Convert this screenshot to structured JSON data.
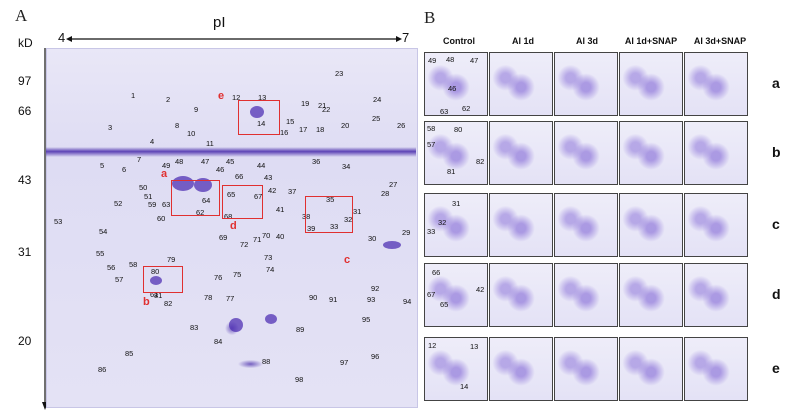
{
  "panels": {
    "a": {
      "letter": "A"
    },
    "b": {
      "letter": "B"
    }
  },
  "gel": {
    "ph_label": "pI",
    "ph_start": "4",
    "ph_end": "7",
    "kd_label": "kD",
    "mw_markers": [
      "97",
      "66",
      "43",
      "31",
      "20"
    ],
    "spots": [
      "1",
      "2",
      "3",
      "4",
      "5",
      "6",
      "7",
      "8",
      "9",
      "10",
      "11",
      "12",
      "13",
      "14",
      "15",
      "16",
      "17",
      "18",
      "19",
      "20",
      "21",
      "22",
      "23",
      "24",
      "25",
      "26",
      "27",
      "28",
      "29",
      "30",
      "31",
      "32",
      "33",
      "34",
      "35",
      "36",
      "37",
      "38",
      "39",
      "40",
      "41",
      "42",
      "43",
      "44",
      "45",
      "46",
      "47",
      "48",
      "49",
      "50",
      "51",
      "52",
      "53",
      "54",
      "55",
      "56",
      "57",
      "58",
      "59",
      "60",
      "61",
      "62",
      "63",
      "64",
      "65",
      "66",
      "67",
      "68",
      "69",
      "70",
      "71",
      "72",
      "73",
      "74",
      "75",
      "76",
      "77",
      "78",
      "79",
      "80",
      "81",
      "82",
      "83",
      "84",
      "85",
      "86",
      "88",
      "89",
      "90",
      "91",
      "92",
      "93",
      "94",
      "95",
      "96",
      "97",
      "98"
    ],
    "boxes": [
      "a",
      "b",
      "c",
      "d",
      "e"
    ]
  },
  "comparison": {
    "columns": [
      "Control",
      "Al 1d",
      "Al  3d",
      "Al 1d+SNAP",
      "Al 3d+SNAP"
    ],
    "rows": [
      "a",
      "b",
      "c",
      "d",
      "e"
    ],
    "control_labels": {
      "a": [
        "49",
        "48",
        "47",
        "46",
        "63",
        "62"
      ],
      "b": [
        "58",
        "80",
        "57",
        "81",
        "82"
      ],
      "c": [
        "31",
        "32",
        "33"
      ],
      "d": [
        "66",
        "67",
        "65",
        "42"
      ],
      "e": [
        "12",
        "13",
        "14"
      ]
    }
  }
}
